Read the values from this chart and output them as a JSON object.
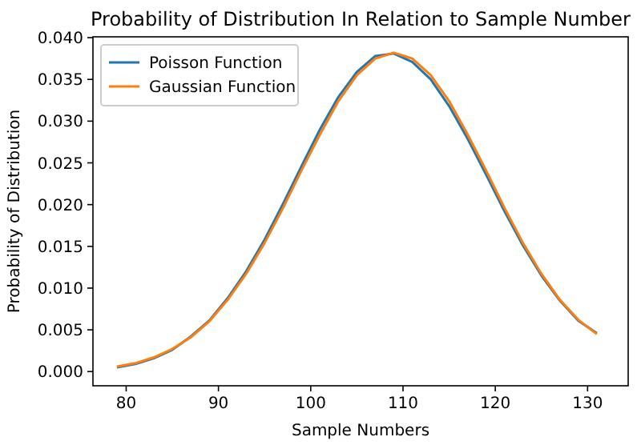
{
  "chart_data": {
    "type": "line",
    "title": "Probability of Distribution In Relation to Sample Number",
    "xlabel": "Sample Numbers",
    "ylabel": "Probability of Distribution",
    "x": [
      79,
      81,
      83,
      85,
      87,
      89,
      91,
      93,
      95,
      97,
      99,
      101,
      103,
      105,
      107,
      109,
      111,
      113,
      115,
      117,
      119,
      121,
      123,
      125,
      127,
      129,
      131
    ],
    "series": [
      {
        "name": "Poisson Function",
        "color": "#1f77b4",
        "values": [
          0.0005,
          0.0009,
          0.0016,
          0.0026,
          0.0042,
          0.0061,
          0.0088,
          0.012,
          0.0158,
          0.0201,
          0.0246,
          0.029,
          0.0329,
          0.0359,
          0.0378,
          0.0381,
          0.0371,
          0.035,
          0.0318,
          0.0279,
          0.0236,
          0.0192,
          0.0151,
          0.0115,
          0.0085,
          0.0061,
          0.0046
        ]
      },
      {
        "name": "Gaussian Function",
        "color": "#ff7f0e",
        "values": [
          0.0006,
          0.001,
          0.0017,
          0.0027,
          0.0041,
          0.006,
          0.0086,
          0.0117,
          0.0154,
          0.0196,
          0.0241,
          0.0284,
          0.0324,
          0.0355,
          0.0375,
          0.0382,
          0.0375,
          0.0355,
          0.0324,
          0.0284,
          0.0241,
          0.0196,
          0.0154,
          0.0117,
          0.0086,
          0.0062,
          0.0045
        ]
      }
    ],
    "xlim": [
      76.4,
      134.4
    ],
    "xticks": [
      80,
      90,
      100,
      110,
      120,
      130
    ],
    "ylim": [
      -0.0017,
      0.0401
    ],
    "yticks": [
      {
        "value": 0,
        "label": "0.000"
      },
      {
        "value": 0.005,
        "label": "0.005"
      },
      {
        "value": 0.01,
        "label": "0.010"
      },
      {
        "value": 0.015,
        "label": "0.015"
      },
      {
        "value": 0.02,
        "label": "0.020"
      },
      {
        "value": 0.025,
        "label": "0.025"
      },
      {
        "value": 0.03,
        "label": "0.030"
      },
      {
        "value": 0.035,
        "label": "0.035"
      },
      {
        "value": 0.04,
        "label": "0.040"
      }
    ],
    "legend": "top left",
    "grid": false,
    "marker": "none",
    "line_style": "solid"
  }
}
